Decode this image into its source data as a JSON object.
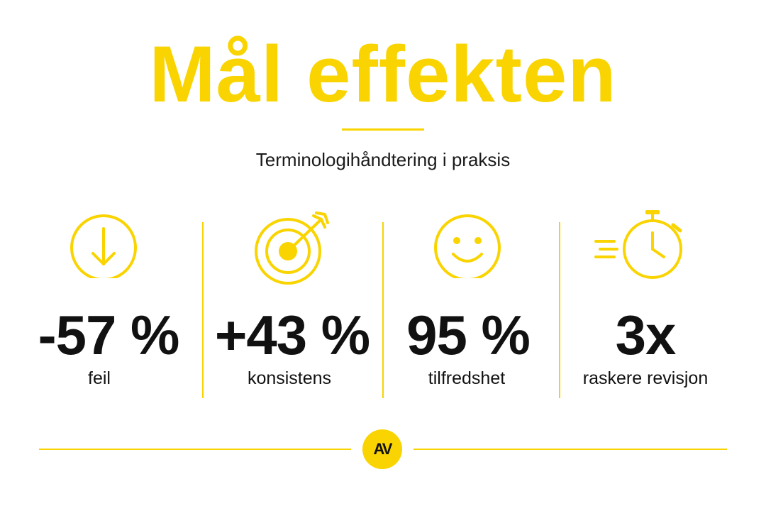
{
  "header": {
    "title": "Mål effekten",
    "subtitle": "Terminologihåndtering i praksis"
  },
  "stats": [
    {
      "icon": "arrow-down-circle-icon",
      "value": "-57 %",
      "label": "feil"
    },
    {
      "icon": "target-icon",
      "value": "+43 %",
      "label": "konsistens"
    },
    {
      "icon": "smiley-icon",
      "value": "95 %",
      "label": "tilfredshet"
    },
    {
      "icon": "stopwatch-icon",
      "value": "3x",
      "label": "raskere revisjon"
    }
  ],
  "footer": {
    "logo_text": "AV"
  },
  "colors": {
    "accent": "#F9D400",
    "text": "#111111",
    "background": "#FFFFFF"
  }
}
